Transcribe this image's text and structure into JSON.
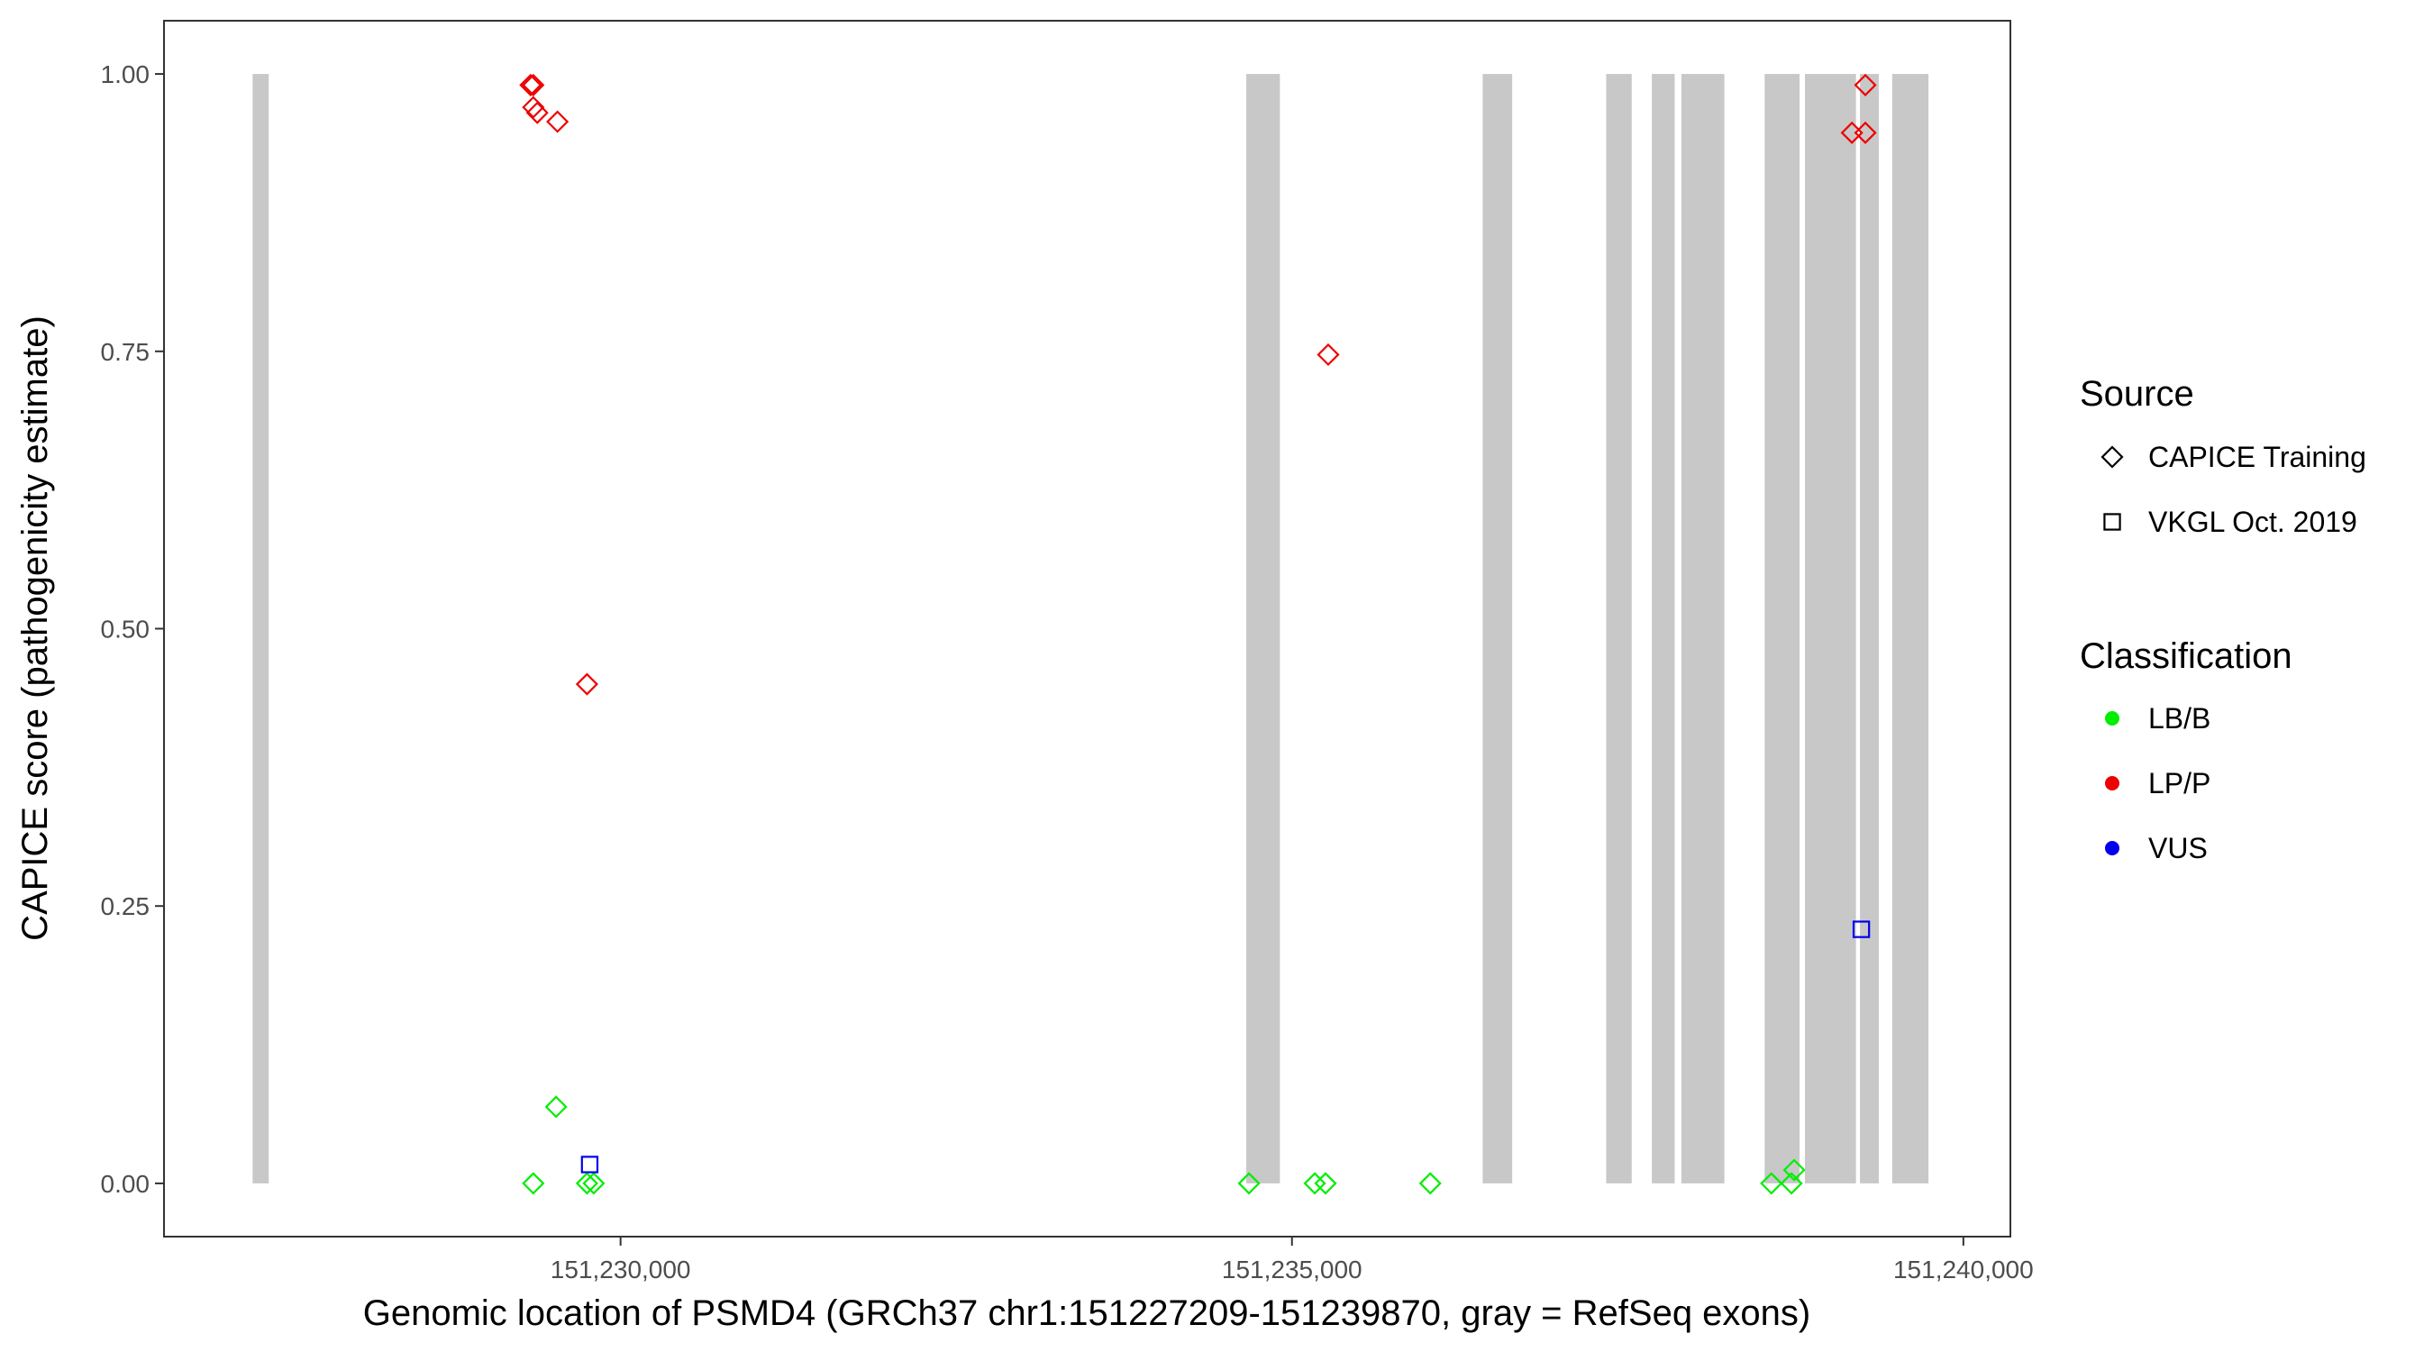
{
  "chart_data": {
    "type": "scatter",
    "xlabel": "Genomic location of PSMD4 (GRCh37 chr1:151227209-151239870, gray = RefSeq exons)",
    "ylabel": "CAPICE score (pathogenicity estimate)",
    "xlim": [
      151226600,
      151240350
    ],
    "ylim": [
      -0.048,
      1.048
    ],
    "x_ticks": [
      151230000,
      151235000,
      151240000
    ],
    "x_tick_labels": [
      "151,230,000",
      "151,235,000",
      "151,240,000"
    ],
    "y_ticks": [
      0,
      0.25,
      0.5,
      0.75,
      1
    ],
    "y_tick_labels": [
      "0.00",
      "0.25",
      "0.50",
      "0.75",
      "1.00"
    ],
    "grid": false,
    "exons": [
      [
        151227260,
        151227380
      ],
      [
        151234660,
        151234910
      ],
      [
        151236420,
        151236640
      ],
      [
        151237340,
        151237530
      ],
      [
        151237680,
        151237850
      ],
      [
        151237900,
        151238220
      ],
      [
        151238520,
        151238780
      ],
      [
        151238820,
        151239200
      ],
      [
        151239230,
        151239370
      ],
      [
        151239470,
        151239740
      ]
    ],
    "legends": {
      "source": {
        "title": "Source",
        "entries": [
          {
            "label": "CAPICE Training",
            "shape": "diamond"
          },
          {
            "label": "VKGL Oct. 2019",
            "shape": "square"
          }
        ]
      },
      "classification": {
        "title": "Classification",
        "entries": [
          {
            "label": "LB/B",
            "color": "#00ee00"
          },
          {
            "label": "LP/P",
            "color": "#ee0000"
          },
          {
            "label": "VUS",
            "color": "#0000ee"
          }
        ]
      }
    },
    "points": [
      {
        "x": 151229330,
        "y": 0.99,
        "source": "CAPICE Training",
        "class": "LP/P"
      },
      {
        "x": 151229350,
        "y": 0.99,
        "source": "CAPICE Training",
        "class": "LP/P"
      },
      {
        "x": 151229350,
        "y": 0.97,
        "source": "CAPICE Training",
        "class": "LP/P"
      },
      {
        "x": 151229380,
        "y": 0.965,
        "source": "CAPICE Training",
        "class": "LP/P"
      },
      {
        "x": 151229530,
        "y": 0.957,
        "source": "CAPICE Training",
        "class": "LP/P"
      },
      {
        "x": 151229750,
        "y": 0.45,
        "source": "CAPICE Training",
        "class": "LP/P"
      },
      {
        "x": 151235270,
        "y": 0.747,
        "source": "CAPICE Training",
        "class": "LP/P"
      },
      {
        "x": 151239170,
        "y": 0.947,
        "source": "CAPICE Training",
        "class": "LP/P"
      },
      {
        "x": 151239270,
        "y": 0.947,
        "source": "CAPICE Training",
        "class": "LP/P"
      },
      {
        "x": 151239270,
        "y": 0.99,
        "source": "CAPICE Training",
        "class": "LP/P"
      },
      {
        "x": 151229520,
        "y": 0.069,
        "source": "CAPICE Training",
        "class": "LB/B"
      },
      {
        "x": 151229350,
        "y": 0.0,
        "source": "CAPICE Training",
        "class": "LB/B"
      },
      {
        "x": 151229750,
        "y": 0.0,
        "source": "CAPICE Training",
        "class": "LB/B"
      },
      {
        "x": 151229800,
        "y": 0.0,
        "source": "CAPICE Training",
        "class": "LB/B"
      },
      {
        "x": 151234680,
        "y": 0.0,
        "source": "CAPICE Training",
        "class": "LB/B"
      },
      {
        "x": 151235170,
        "y": 0.0,
        "source": "CAPICE Training",
        "class": "LB/B"
      },
      {
        "x": 151235250,
        "y": 0.0,
        "source": "CAPICE Training",
        "class": "LB/B"
      },
      {
        "x": 151236030,
        "y": 0.0,
        "source": "CAPICE Training",
        "class": "LB/B"
      },
      {
        "x": 151238570,
        "y": 0.0,
        "source": "CAPICE Training",
        "class": "LB/B"
      },
      {
        "x": 151238720,
        "y": 0.0,
        "source": "CAPICE Training",
        "class": "LB/B"
      },
      {
        "x": 151238740,
        "y": 0.012,
        "source": "CAPICE Training",
        "class": "LB/B"
      },
      {
        "x": 151229770,
        "y": 0.017,
        "source": "VKGL Oct. 2019",
        "class": "VUS"
      },
      {
        "x": 151239240,
        "y": 0.229,
        "source": "VKGL Oct. 2019",
        "class": "VUS"
      }
    ]
  }
}
